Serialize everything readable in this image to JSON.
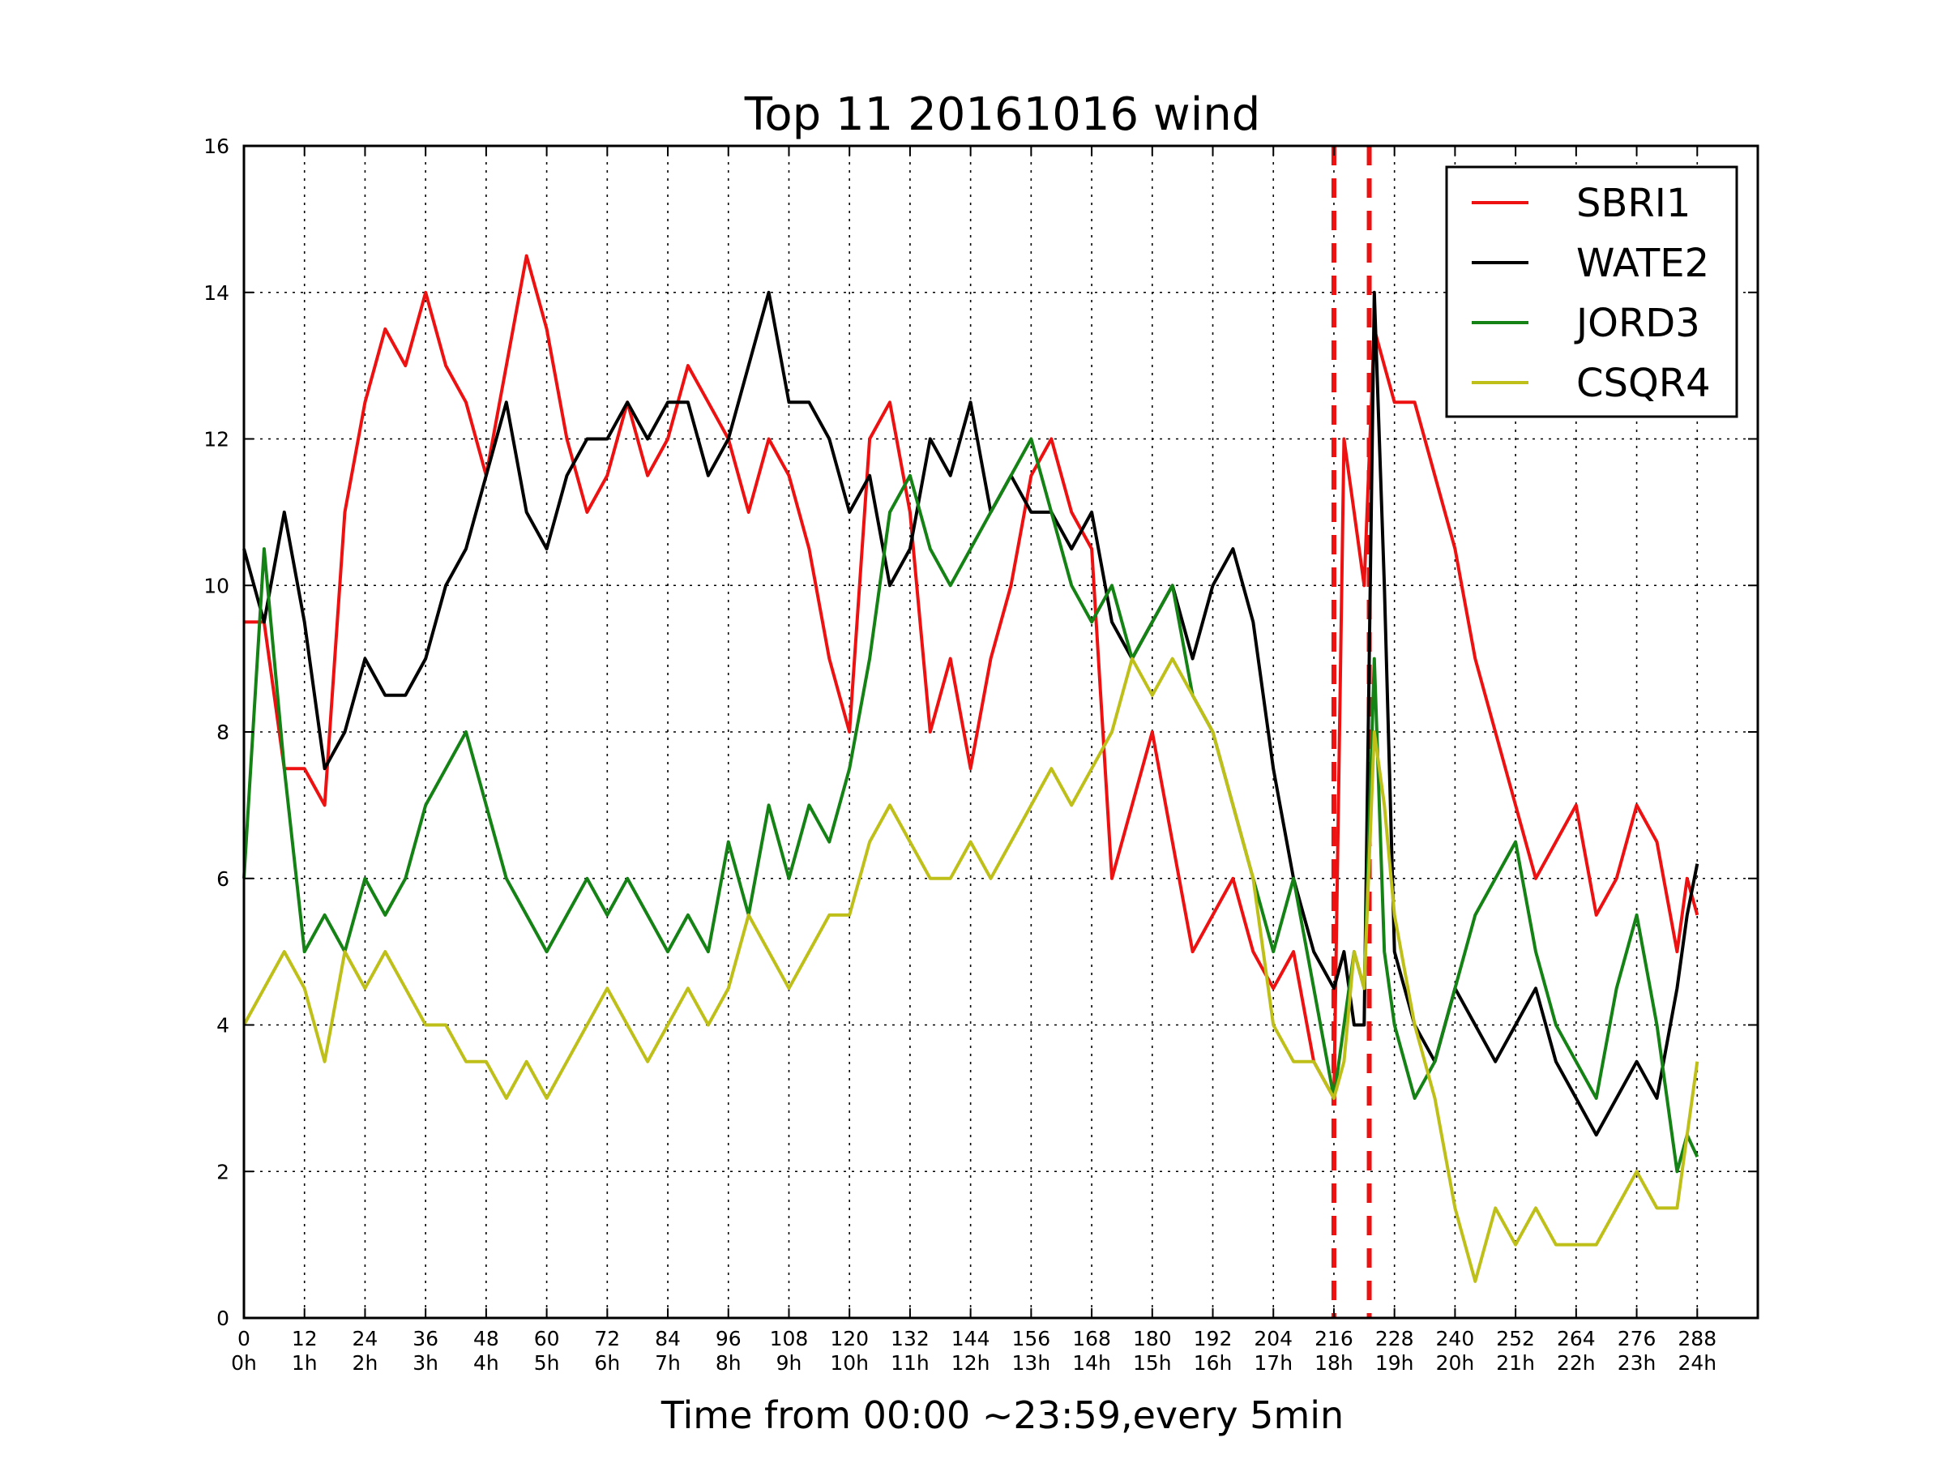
{
  "chart_data": {
    "type": "line",
    "title": "Top 11 20161016 wind",
    "xlabel": "Time from 00:00 ~23:59,every 5min",
    "ylabel": "",
    "xlim": [
      0,
      300
    ],
    "ylim": [
      0,
      16
    ],
    "grid": true,
    "legend_position": "top-right",
    "x_ticks": [
      0,
      12,
      24,
      36,
      48,
      60,
      72,
      84,
      96,
      108,
      120,
      132,
      144,
      156,
      168,
      180,
      192,
      204,
      216,
      228,
      240,
      252,
      264,
      276,
      288
    ],
    "x_tick_labels": [
      "0",
      "12",
      "24",
      "36",
      "48",
      "60",
      "72",
      "84",
      "96",
      "108",
      "120",
      "132",
      "144",
      "156",
      "168",
      "180",
      "192",
      "204",
      "216",
      "228",
      "240",
      "252",
      "264",
      "276",
      "288"
    ],
    "x_tick_hours": [
      "0h",
      "1h",
      "2h",
      "3h",
      "4h",
      "5h",
      "6h",
      "7h",
      "8h",
      "9h",
      "10h",
      "11h",
      "12h",
      "13h",
      "14h",
      "15h",
      "16h",
      "17h",
      "18h",
      "19h",
      "20h",
      "21h",
      "22h",
      "23h",
      "24h"
    ],
    "y_ticks": [
      0,
      2,
      4,
      6,
      8,
      10,
      12,
      14,
      16
    ],
    "y_tick_labels": [
      "0",
      "2",
      "4",
      "6",
      "8",
      "10",
      "12",
      "14",
      "16"
    ],
    "vertical_markers": [
      {
        "x": 216,
        "color": "#ee1111",
        "style": "dashed"
      },
      {
        "x": 223,
        "color": "#ee1111",
        "style": "dashed"
      }
    ],
    "series": [
      {
        "name": "SBRI1",
        "color": "#ee1111",
        "x": [
          0,
          4,
          8,
          12,
          16,
          20,
          24,
          28,
          32,
          36,
          40,
          44,
          48,
          52,
          56,
          60,
          64,
          68,
          72,
          76,
          80,
          84,
          88,
          92,
          96,
          100,
          104,
          108,
          112,
          116,
          120,
          124,
          128,
          132,
          136,
          140,
          144,
          148,
          152,
          156,
          160,
          164,
          168,
          172,
          176,
          180,
          184,
          188,
          192,
          196,
          200,
          204,
          208,
          212,
          216,
          218,
          220,
          222,
          224,
          226,
          228,
          232,
          236,
          240,
          244,
          248,
          252,
          256,
          260,
          264,
          268,
          272,
          276,
          280,
          284,
          286,
          288
        ],
        "values": [
          9.5,
          9.5,
          7.5,
          7.5,
          7.0,
          11.0,
          12.5,
          13.5,
          13.0,
          14.0,
          13.0,
          12.5,
          11.5,
          13.0,
          14.5,
          13.5,
          12.0,
          11.0,
          11.5,
          12.5,
          11.5,
          12.0,
          13.0,
          12.5,
          12.0,
          11.0,
          12.0,
          11.5,
          10.5,
          9.0,
          8.0,
          12.0,
          12.5,
          11.0,
          8.0,
          9.0,
          7.5,
          9.0,
          10.0,
          11.5,
          12.0,
          11.0,
          10.5,
          6.0,
          7.0,
          8.0,
          6.5,
          5.0,
          5.5,
          6.0,
          5.0,
          4.5,
          5.0,
          3.5,
          3.0,
          12.0,
          11.0,
          10.0,
          13.5,
          13.0,
          12.5,
          12.5,
          11.5,
          10.5,
          9.0,
          8.0,
          7.0,
          6.0,
          6.5,
          7.0,
          5.5,
          6.0,
          7.0,
          6.5,
          5.0,
          6.0,
          5.5
        ]
      },
      {
        "name": "WATE2",
        "color": "#000000",
        "x": [
          0,
          4,
          8,
          12,
          16,
          20,
          24,
          28,
          32,
          36,
          40,
          44,
          48,
          52,
          56,
          60,
          64,
          68,
          72,
          76,
          80,
          84,
          88,
          92,
          96,
          100,
          104,
          108,
          112,
          116,
          120,
          124,
          128,
          132,
          136,
          140,
          144,
          148,
          152,
          156,
          160,
          164,
          168,
          172,
          176,
          180,
          184,
          188,
          192,
          196,
          200,
          204,
          208,
          212,
          216,
          218,
          220,
          222,
          224,
          226,
          228,
          232,
          236,
          240,
          244,
          248,
          252,
          256,
          260,
          264,
          268,
          272,
          276,
          280,
          284,
          286,
          288
        ],
        "values": [
          10.5,
          9.5,
          11.0,
          9.5,
          7.5,
          8.0,
          9.0,
          8.5,
          8.5,
          9.0,
          10.0,
          10.5,
          11.5,
          12.5,
          11.0,
          10.5,
          11.5,
          12.0,
          12.0,
          12.5,
          12.0,
          12.5,
          12.5,
          11.5,
          12.0,
          13.0,
          14.0,
          12.5,
          12.5,
          12.0,
          11.0,
          11.5,
          10.0,
          10.5,
          12.0,
          11.5,
          12.5,
          11.0,
          11.5,
          11.0,
          11.0,
          10.5,
          11.0,
          9.5,
          9.0,
          9.5,
          10.0,
          9.0,
          10.0,
          10.5,
          9.5,
          7.5,
          6.0,
          5.0,
          4.5,
          5.0,
          4.0,
          4.0,
          14.0,
          10.0,
          5.0,
          4.0,
          3.5,
          4.5,
          4.0,
          3.5,
          4.0,
          4.5,
          3.5,
          3.0,
          2.5,
          3.0,
          3.5,
          3.0,
          4.5,
          5.5,
          6.2
        ]
      },
      {
        "name": "JORD3",
        "color": "#148214",
        "x": [
          0,
          4,
          8,
          12,
          16,
          20,
          24,
          28,
          32,
          36,
          40,
          44,
          48,
          52,
          56,
          60,
          64,
          68,
          72,
          76,
          80,
          84,
          88,
          92,
          96,
          100,
          104,
          108,
          112,
          116,
          120,
          124,
          128,
          132,
          136,
          140,
          144,
          148,
          152,
          156,
          160,
          164,
          168,
          172,
          176,
          180,
          184,
          188,
          192,
          196,
          200,
          204,
          208,
          212,
          216,
          218,
          220,
          222,
          224,
          226,
          228,
          232,
          236,
          240,
          244,
          248,
          252,
          256,
          260,
          264,
          268,
          272,
          276,
          280,
          284,
          286,
          288
        ],
        "values": [
          6.0,
          10.5,
          7.5,
          5.0,
          5.5,
          5.0,
          6.0,
          5.5,
          6.0,
          7.0,
          7.5,
          8.0,
          7.0,
          6.0,
          5.5,
          5.0,
          5.5,
          6.0,
          5.5,
          6.0,
          5.5,
          5.0,
          5.5,
          5.0,
          6.5,
          5.5,
          7.0,
          6.0,
          7.0,
          6.5,
          7.5,
          9.0,
          11.0,
          11.5,
          10.5,
          10.0,
          10.5,
          11.0,
          11.5,
          12.0,
          11.0,
          10.0,
          9.5,
          10.0,
          9.0,
          9.5,
          10.0,
          8.5,
          8.0,
          7.0,
          6.0,
          5.0,
          6.0,
          4.5,
          3.0,
          4.0,
          5.0,
          4.5,
          9.0,
          5.0,
          4.0,
          3.0,
          3.5,
          4.5,
          5.5,
          6.0,
          6.5,
          5.0,
          4.0,
          3.5,
          3.0,
          4.5,
          5.5,
          4.0,
          2.0,
          2.5,
          2.2
        ]
      },
      {
        "name": "CSQR4",
        "color": "#bfbf1a",
        "x": [
          0,
          4,
          8,
          12,
          16,
          20,
          24,
          28,
          32,
          36,
          40,
          44,
          48,
          52,
          56,
          60,
          64,
          68,
          72,
          76,
          80,
          84,
          88,
          92,
          96,
          100,
          104,
          108,
          112,
          116,
          120,
          124,
          128,
          132,
          136,
          140,
          144,
          148,
          152,
          156,
          160,
          164,
          168,
          172,
          176,
          180,
          184,
          188,
          192,
          196,
          200,
          204,
          208,
          212,
          216,
          218,
          220,
          222,
          224,
          226,
          228,
          232,
          236,
          240,
          244,
          248,
          252,
          256,
          260,
          264,
          268,
          272,
          276,
          280,
          284,
          286,
          288
        ],
        "values": [
          4.0,
          4.5,
          5.0,
          4.5,
          3.5,
          5.0,
          4.5,
          5.0,
          4.5,
          4.0,
          4.0,
          3.5,
          3.5,
          3.0,
          3.5,
          3.0,
          3.5,
          4.0,
          4.5,
          4.0,
          3.5,
          4.0,
          4.5,
          4.0,
          4.5,
          5.5,
          5.0,
          4.5,
          5.0,
          5.5,
          5.5,
          6.5,
          7.0,
          6.5,
          6.0,
          6.0,
          6.5,
          6.0,
          6.5,
          7.0,
          7.5,
          7.0,
          7.5,
          8.0,
          9.0,
          8.5,
          9.0,
          8.5,
          8.0,
          7.0,
          6.0,
          4.0,
          3.5,
          3.5,
          3.0,
          3.5,
          5.0,
          4.5,
          8.0,
          7.0,
          5.5,
          4.0,
          3.0,
          1.5,
          0.5,
          1.5,
          1.0,
          1.5,
          1.0,
          1.0,
          1.0,
          1.5,
          2.0,
          1.5,
          1.5,
          2.5,
          3.5
        ]
      }
    ]
  }
}
